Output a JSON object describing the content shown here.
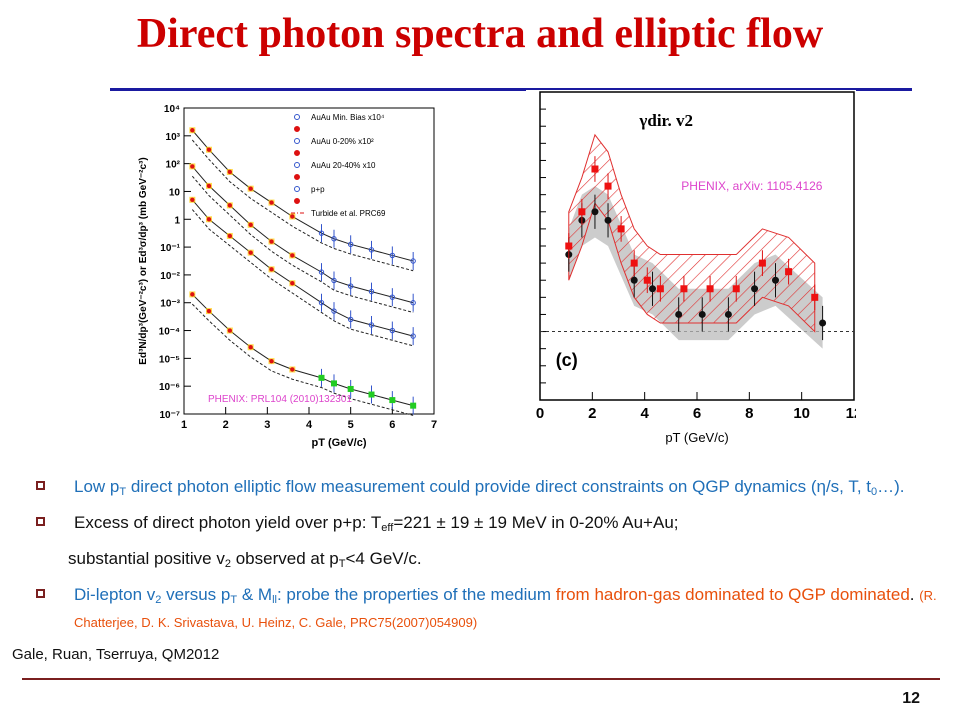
{
  "slide": {
    "title": "Direct photon spectra and elliptic flow",
    "footer": "Gale, Ruan, Tserruya, QM2012",
    "page_number": "12",
    "accent_color": "#cc0000",
    "rule_color": "#1a1aa0"
  },
  "bullets": [
    {
      "parts": [
        {
          "t": "Low p",
          "c": "blue"
        },
        {
          "t": "T",
          "c": "blue",
          "sub": true
        },
        {
          "t": " direct photon elliptic flow measurement could provide direct constraints on QGP dynamics (η/s, T, t",
          "c": "blue"
        },
        {
          "t": "0",
          "c": "blue",
          "sub": true
        },
        {
          "t": "…).",
          "c": "blue"
        }
      ]
    },
    {
      "parts": [
        {
          "t": "Excess of direct photon yield over p+p: T",
          "c": "blk"
        },
        {
          "t": "eff",
          "c": "blk",
          "sub": true
        },
        {
          "t": "=221 ± 19 ± 19 MeV in 0-20% Au+Au;",
          "c": "blk"
        }
      ],
      "continuation": [
        {
          "t": "substantial positive v",
          "c": "blk"
        },
        {
          "t": "2",
          "c": "blk",
          "sub": true
        },
        {
          "t": " observed at p",
          "c": "blk"
        },
        {
          "t": "T",
          "c": "blk",
          "sub": true
        },
        {
          "t": "<4 GeV/c.",
          "c": "blk"
        }
      ]
    },
    {
      "parts": [
        {
          "t": "Di-lepton v",
          "c": "blue"
        },
        {
          "t": "2",
          "c": "blue",
          "sub": true
        },
        {
          "t": " versus p",
          "c": "blue"
        },
        {
          "t": "T",
          "c": "blue",
          "sub": true
        },
        {
          "t": " & M",
          "c": "blue"
        },
        {
          "t": "ll",
          "c": "blue",
          "sub": true
        },
        {
          "t": ": probe the properties of the medium ",
          "c": "blue"
        },
        {
          "t": "from hadron-gas  dominated to QGP dominated",
          "c": "ora"
        },
        {
          "t": ". ",
          "c": "blk"
        },
        {
          "t": "(R. Chatterjee, D. K. Srivastava, U. Heinz, C. Gale, PRC75(2007)054909)",
          "c": "cite"
        }
      ]
    }
  ],
  "chart_data": [
    {
      "type": "scatter",
      "title": "",
      "xlabel": "pT (GeV/c)",
      "ylabel": "Ed³N/dp³(GeV⁻²c³) or Ed³σ/dp³ (mb GeV⁻²c³)",
      "xlim": [
        1,
        7
      ],
      "ylim_log10": [
        -7,
        4
      ],
      "log_y": true,
      "x_ticks": [
        "1",
        "2",
        "3",
        "4",
        "5",
        "6",
        "7"
      ],
      "y_ticks": [
        "10⁻⁷",
        "10⁻⁶",
        "10⁻⁵",
        "10⁻⁴",
        "10⁻³",
        "10⁻²",
        "10⁻¹",
        "1",
        "10",
        "10²",
        "10³",
        "10⁴"
      ],
      "annotation": "PHENIX: PRL104 (2010)132301",
      "legend_position": "top-right",
      "legend": [
        {
          "label": "AuAu Min. Bias x10⁴",
          "marker": "triangle-open",
          "color": "#3355cc"
        },
        {
          "label": "",
          "marker": "triangle-filled",
          "color": "#dd1111"
        },
        {
          "label": "AuAu 0-20% x10²",
          "marker": "circle-open",
          "color": "#3355cc"
        },
        {
          "label": "",
          "marker": "circle-filled",
          "color": "#dd1111"
        },
        {
          "label": "AuAu 20-40% x10",
          "marker": "square-open",
          "color": "#3355cc"
        },
        {
          "label": "",
          "marker": "square-filled",
          "color": "#dd1111"
        },
        {
          "label": "p+p",
          "marker": "diamond-open",
          "color": "#3355cc"
        },
        {
          "label": "",
          "marker": "star-filled",
          "color": "#dd1111"
        },
        {
          "label": "Turbide et al. PRC69",
          "marker": "dashdot-line",
          "color": "#dd1111"
        }
      ],
      "series": [
        {
          "name": "AuAu Min. Bias x10⁴",
          "color": "#dd1111",
          "x": [
            1.2,
            1.6,
            2.1,
            2.6,
            3.1,
            3.6,
            4.3,
            4.6,
            5.0,
            5.5,
            6.0,
            6.5
          ],
          "y": [
            3.2,
            2.5,
            1.7,
            1.1,
            0.6,
            0.1,
            -0.5,
            -0.7,
            -0.9,
            -1.1,
            -1.3,
            -1.5
          ]
        },
        {
          "name": "AuAu 0-20% x10²",
          "color": "#dd1111",
          "x": [
            1.2,
            1.6,
            2.1,
            2.6,
            3.1,
            3.6,
            4.3,
            4.6,
            5.0,
            5.5,
            6.0,
            6.5
          ],
          "y": [
            1.9,
            1.2,
            0.5,
            -0.2,
            -0.8,
            -1.3,
            -1.9,
            -2.2,
            -2.4,
            -2.6,
            -2.8,
            -3.0
          ]
        },
        {
          "name": "AuAu 20-40% x10",
          "color": "#dd1111",
          "x": [
            1.2,
            1.6,
            2.1,
            2.6,
            3.1,
            3.6,
            4.3,
            4.6,
            5.0,
            5.5,
            6.0,
            6.5
          ],
          "y": [
            0.7,
            0.0,
            -0.6,
            -1.2,
            -1.8,
            -2.3,
            -3.0,
            -3.3,
            -3.6,
            -3.8,
            -4.0,
            -4.2
          ]
        },
        {
          "name": "p+p",
          "color": "#dd1111",
          "x": [
            1.2,
            1.6,
            2.1,
            2.6,
            3.1,
            3.6,
            4.3,
            4.6,
            5.0,
            5.5,
            6.0,
            6.5
          ],
          "y": [
            -2.7,
            -3.3,
            -4.0,
            -4.6,
            -5.1,
            -5.4,
            -5.7,
            -5.9,
            -6.1,
            -6.3,
            -6.5,
            -6.7
          ]
        }
      ]
    },
    {
      "type": "line",
      "title": "γdir. v2",
      "xlabel": "pT (GeV/c)",
      "ylabel": "",
      "xlim": [
        0,
        12
      ],
      "ylim": [
        -0.08,
        0.28
      ],
      "x_ticks": [
        "0",
        "2",
        "4",
        "6",
        "8",
        "10",
        "12"
      ],
      "annotation": "PHENIX, arXiv: 1105.4126",
      "panel_label": "(c)",
      "series": [
        {
          "name": "",
          "color": "#dd1111",
          "x": [
            1.1,
            1.6,
            2.1,
            2.6,
            3.1,
            3.6,
            4.1,
            4.6,
            5.5,
            6.5,
            7.5,
            8.5,
            9.5,
            10.5
          ],
          "y": [
            0.1,
            0.14,
            0.19,
            0.17,
            0.12,
            0.08,
            0.06,
            0.05,
            0.05,
            0.05,
            0.05,
            0.08,
            0.07,
            0.04
          ]
        },
        {
          "name": "",
          "color": "#111111",
          "x": [
            1.1,
            1.6,
            2.1,
            2.6,
            3.6,
            4.3,
            5.3,
            6.2,
            7.2,
            8.2,
            9.0,
            10.8
          ],
          "y": [
            0.09,
            0.13,
            0.14,
            0.13,
            0.06,
            0.05,
            0.02,
            0.02,
            0.02,
            0.05,
            0.06,
            0.01
          ]
        }
      ]
    }
  ]
}
